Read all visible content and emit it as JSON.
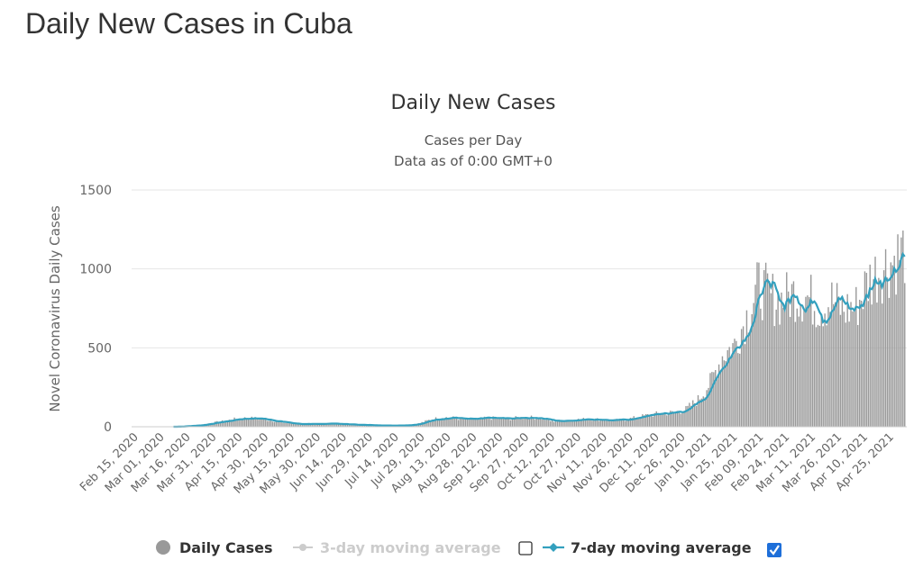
{
  "page": {
    "title": "Daily New Cases in Cuba"
  },
  "chart_data": {
    "type": "bar",
    "title": "Daily New Cases",
    "subtitle_1": "Cases per Day",
    "subtitle_2": "Data as of 0:00 GMT+0",
    "ylabel": "Novel Coronavirus Daily Cases",
    "ylim": [
      0,
      1500
    ],
    "yticks": [
      "0",
      "500",
      "1000",
      "1500"
    ],
    "grid": true,
    "legend_position": "bottom",
    "x_start": "Feb 15, 2020",
    "x_end": "May 02, 2021",
    "xticks": [
      "Feb 15, 2020",
      "Mar 01, 2020",
      "Mar 16, 2020",
      "Mar 31, 2020",
      "Apr 15, 2020",
      "Apr 30, 2020",
      "May 15, 2020",
      "May 30, 2020",
      "Jun 14, 2020",
      "Jun 29, 2020",
      "Jul 14, 2020",
      "Jul 29, 2020",
      "Aug 13, 2020",
      "Aug 28, 2020",
      "Sep 12, 2020",
      "Sep 27, 2020",
      "Oct 12, 2020",
      "Oct 27, 2020",
      "Nov 11, 2020",
      "Nov 26, 2020",
      "Dec 11, 2020",
      "Dec 26, 2020",
      "Jan 10, 2021",
      "Jan 25, 2021",
      "Feb 09, 2021",
      "Feb 24, 2021",
      "Mar 11, 2021",
      "Mar 26, 2021",
      "Apr 10, 2021",
      "Apr 25, 2021"
    ],
    "daily_cases_weekly_approx": {
      "note": "",
      "week_start_dates": [
        "Feb 15, 2020",
        "Feb 22, 2020",
        "Feb 29, 2020",
        "Mar 07, 2020",
        "Mar 14, 2020",
        "Mar 21, 2020",
        "Mar 28, 2020",
        "Apr 04, 2020",
        "Apr 11, 2020",
        "Apr 18, 2020",
        "Apr 25, 2020",
        "May 02, 2020",
        "May 09, 2020",
        "May 16, 2020",
        "May 23, 2020",
        "May 30, 2020",
        "Jun 06, 2020",
        "Jun 13, 2020",
        "Jun 20, 2020",
        "Jun 27, 2020",
        "Jul 04, 2020",
        "Jul 11, 2020",
        "Jul 18, 2020",
        "Jul 25, 2020",
        "Aug 01, 2020",
        "Aug 08, 2020",
        "Aug 15, 2020",
        "Aug 22, 2020",
        "Aug 29, 2020",
        "Sep 05, 2020",
        "Sep 12, 2020",
        "Sep 19, 2020",
        "Sep 26, 2020",
        "Oct 03, 2020",
        "Oct 10, 2020",
        "Oct 17, 2020",
        "Oct 24, 2020",
        "Oct 31, 2020",
        "Nov 07, 2020",
        "Nov 14, 2020",
        "Nov 21, 2020",
        "Nov 28, 2020",
        "Dec 05, 2020",
        "Dec 12, 2020",
        "Dec 19, 2020",
        "Dec 26, 2020",
        "Jan 02, 2021",
        "Jan 09, 2021",
        "Jan 16, 2021",
        "Jan 23, 2021",
        "Jan 30, 2021",
        "Feb 06, 2021",
        "Feb 13, 2021",
        "Feb 20, 2021",
        "Feb 27, 2021",
        "Mar 06, 2021",
        "Mar 13, 2021",
        "Mar 20, 2021",
        "Mar 27, 2021",
        "Apr 03, 2021",
        "Apr 10, 2021",
        "Apr 17, 2021",
        "Apr 24, 2021",
        "May 01, 2021"
      ],
      "values": [
        0,
        0,
        0,
        0,
        5,
        10,
        25,
        35,
        50,
        55,
        50,
        40,
        25,
        18,
        15,
        20,
        20,
        15,
        12,
        10,
        8,
        8,
        10,
        20,
        45,
        60,
        55,
        45,
        50,
        55,
        50,
        55,
        60,
        55,
        35,
        40,
        45,
        50,
        45,
        40,
        45,
        60,
        75,
        85,
        90,
        110,
        170,
        280,
        450,
        520,
        700,
        890,
        820,
        800,
        850,
        820,
        760,
        800,
        740,
        760,
        920,
        1000,
        1050,
        1120
      ]
    },
    "series": [
      {
        "name": "Daily Cases",
        "color": "#999999",
        "visible": true
      },
      {
        "name": "3-day moving average",
        "color": "#cccccc",
        "visible": false
      },
      {
        "name": "7-day moving average",
        "color": "#33a0be",
        "visible": true
      }
    ]
  },
  "legend": {
    "daily_cases_label": "Daily Cases",
    "three_day_label": "3-day moving average",
    "seven_day_label": "7-day moving average",
    "three_day_checked": false,
    "seven_day_checked": true,
    "check_color": "#1e6fd9"
  }
}
